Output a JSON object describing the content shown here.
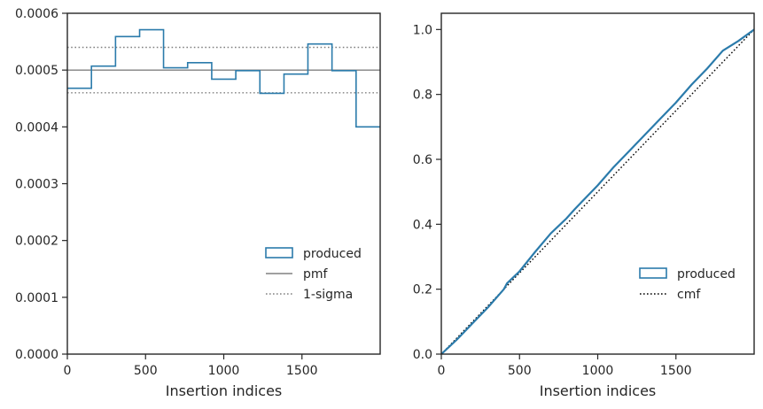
{
  "chart_data": [
    {
      "type": "line",
      "panel": "left",
      "drawstyle": "steps-post histogram",
      "xlabel": "Insertion indices",
      "ylabel": "",
      "xlim": [
        0,
        2000
      ],
      "ylim": [
        0,
        0.0006
      ],
      "x_ticks": [
        0,
        500,
        1000,
        1500
      ],
      "x_tick_labels": [
        "0",
        "500",
        "1000",
        "1500"
      ],
      "y_ticks": [
        0,
        0.0001,
        0.0002,
        0.0003,
        0.0004,
        0.0005,
        0.0006
      ],
      "y_tick_labels": [
        "0.0000",
        "0.0001",
        "0.0002",
        "0.0003",
        "0.0004",
        "0.0005",
        "0.0006"
      ],
      "bin_edges": [
        0,
        154,
        308,
        462,
        615,
        769,
        923,
        1077,
        1231,
        1385,
        1538,
        1692,
        1846,
        2000
      ],
      "series": [
        {
          "name": "produced",
          "style": "step",
          "color": "#2b7bab",
          "values": [
            0.000468,
            0.000507,
            0.000559,
            0.000571,
            0.000504,
            0.000513,
            0.000484,
            0.000499,
            0.000459,
            0.000493,
            0.000546,
            0.000499,
            0.0004
          ]
        },
        {
          "name": "pmf",
          "style": "solid",
          "color": "#808080",
          "values": [
            0.0005
          ]
        },
        {
          "name": "1-sigma",
          "style": "dotted",
          "color": "#808080",
          "values": [
            0.00046,
            0.00054
          ]
        }
      ],
      "legend": {
        "placement": "lower-right",
        "entries": [
          "produced",
          "pmf",
          "1-sigma"
        ]
      },
      "grid": false
    },
    {
      "type": "line",
      "panel": "right",
      "xlabel": "Insertion indices",
      "ylabel": "",
      "xlim": [
        0,
        2000
      ],
      "ylim": [
        0,
        1.05
      ],
      "x_ticks": [
        0,
        500,
        1000,
        1500
      ],
      "x_tick_labels": [
        "0",
        "500",
        "1000",
        "1500"
      ],
      "y_ticks": [
        0,
        0.2,
        0.4,
        0.6,
        0.8,
        1.0
      ],
      "y_tick_labels": [
        "0.0",
        "0.2",
        "0.4",
        "0.6",
        "0.8",
        "1.0"
      ],
      "series": [
        {
          "name": "produced",
          "style": "solid",
          "color": "#2b7bab",
          "x": [
            0,
            100,
            200,
            300,
            400,
            420,
            500,
            600,
            700,
            800,
            850,
            900,
            1000,
            1100,
            1200,
            1300,
            1400,
            1500,
            1600,
            1700,
            1800,
            1900,
            2000
          ],
          "y": [
            0,
            0.045,
            0.095,
            0.145,
            0.2,
            0.218,
            0.255,
            0.315,
            0.372,
            0.418,
            0.445,
            0.47,
            0.52,
            0.575,
            0.625,
            0.675,
            0.725,
            0.775,
            0.83,
            0.88,
            0.935,
            0.965,
            1.0
          ]
        },
        {
          "name": "cmf",
          "style": "dotted",
          "color": "#000000",
          "x": [
            0,
            2000
          ],
          "y": [
            0,
            1.0
          ]
        }
      ],
      "legend": {
        "placement": "lower-right",
        "entries": [
          "produced",
          "cmf"
        ]
      },
      "grid": false
    }
  ]
}
